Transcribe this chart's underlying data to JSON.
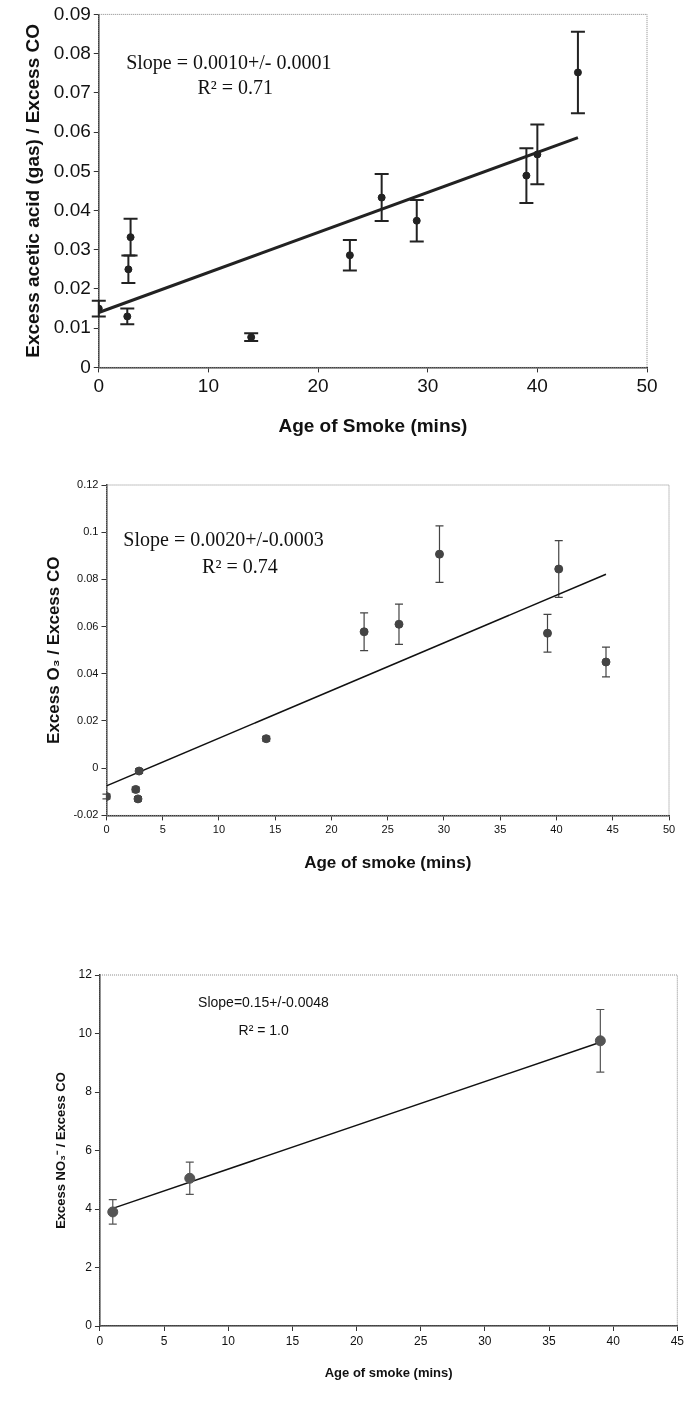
{
  "chart_data": [
    {
      "type": "scatter",
      "xlabel": "Age of Smoke (mins)",
      "ylabel": "Excess acetic acid (gas) / Excess CO",
      "annotations": [
        "Slope = 0.0010+/- 0.0001",
        "R² = 0.71"
      ],
      "xlim": [
        0,
        50
      ],
      "xticks": [
        0,
        10,
        20,
        30,
        40,
        50
      ],
      "ylim": [
        0,
        0.09
      ],
      "yticks": [
        0,
        0.01,
        0.02,
        0.03,
        0.04,
        0.05,
        0.06,
        0.07,
        0.08,
        0.09
      ],
      "grid": false,
      "legend": false,
      "series": [
        {
          "marker": "circle",
          "color": "#222222",
          "x": [
            0,
            2.6,
            2.7,
            2.9,
            13.9,
            22.9,
            25.8,
            29.0,
            39.0,
            40.0,
            43.7
          ],
          "values": [
            0.015,
            0.013,
            0.025,
            0.0332,
            0.0077,
            0.0286,
            0.0433,
            0.0374,
            0.0489,
            0.0543,
            0.0752
          ],
          "errors": [
            0.002,
            0.002,
            0.0035,
            0.0047,
            0.001,
            0.0039,
            0.006,
            0.0053,
            0.007,
            0.0076,
            0.0104
          ]
        },
        {
          "type": "line",
          "marker": "none",
          "color": "#222222",
          "x": [
            0,
            43.7
          ],
          "values": [
            0.014,
            0.0586
          ]
        }
      ]
    },
    {
      "type": "scatter",
      "xlabel": "Age of smoke (mins)",
      "ylabel": "Excess O₃ / Excess CO",
      "annotations": [
        "Slope = 0.0020+/-0.0003",
        "R² = 0.74"
      ],
      "xlim": [
        0,
        50
      ],
      "xticks": [
        0,
        5,
        10,
        15,
        20,
        25,
        30,
        35,
        40,
        45,
        50
      ],
      "ylim": [
        -0.02,
        0.12
      ],
      "yticks": [
        -0.02,
        0,
        0.02,
        0.04,
        0.06,
        0.08,
        0.1,
        0.12
      ],
      "grid": false,
      "legend": false,
      "series": [
        {
          "marker": "circle",
          "color": "#444444",
          "x": [
            0,
            2.6,
            2.8,
            2.9,
            14.2,
            22.9,
            26.0,
            29.6,
            39.2,
            40.2,
            44.4
          ],
          "values": [
            -0.012,
            -0.009,
            -0.013,
            -0.0012,
            0.0125,
            0.0578,
            0.061,
            0.0907,
            0.0572,
            0.0844,
            0.045
          ],
          "errors": [
            0.001,
            0.001,
            0.001,
            0.001,
            0.001,
            0.008,
            0.0085,
            0.012,
            0.008,
            0.012,
            0.0063
          ]
        },
        {
          "type": "line",
          "marker": "none",
          "color": "#111111",
          "x": [
            0,
            44.4
          ],
          "values": [
            -0.0075,
            0.0822
          ]
        }
      ]
    },
    {
      "type": "scatter",
      "xlabel": "Age of smoke (mins)",
      "ylabel": "Excess NO₃⁻ / Excess CO",
      "annotations": [
        "Slope=0.15+/-0.0048",
        "R² = 1.0"
      ],
      "xlim": [
        0,
        45
      ],
      "xticks": [
        0,
        5,
        10,
        15,
        20,
        25,
        30,
        35,
        40,
        45
      ],
      "ylim": [
        0,
        12
      ],
      "yticks": [
        0,
        2,
        4,
        6,
        8,
        10,
        12
      ],
      "grid": false,
      "legend": false,
      "series": [
        {
          "marker": "circle",
          "color": "#555555",
          "x": [
            1,
            7,
            39
          ],
          "values": [
            3.9,
            5.05,
            9.75
          ],
          "errors": [
            0.42,
            0.55,
            1.07
          ]
        },
        {
          "type": "line",
          "marker": "none",
          "color": "#111111",
          "x": [
            1,
            39
          ],
          "values": [
            4.02,
            9.7
          ]
        }
      ]
    }
  ]
}
